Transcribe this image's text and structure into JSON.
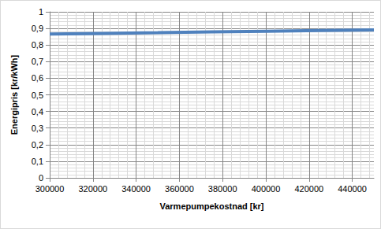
{
  "chart_data": {
    "type": "line",
    "x_label": "Varmepumpekostnad [kr]",
    "y_label": "Energipris [kr/kWh]",
    "series": [
      {
        "name": "Energipris",
        "color": "#4f81bd",
        "x": [
          300000,
          325000,
          350000,
          375000,
          400000,
          425000,
          450000
        ],
        "values": [
          0.866,
          0.87,
          0.874,
          0.879,
          0.883,
          0.887,
          0.891
        ]
      }
    ],
    "xlim": [
      300000,
      450000
    ],
    "xticks": [
      300000,
      320000,
      340000,
      360000,
      380000,
      400000,
      420000,
      440000
    ],
    "ylim": [
      0,
      1
    ],
    "yticks": [
      0,
      {
        "value": 0.1,
        "label": "0,1"
      },
      {
        "value": 0.2,
        "label": "0,2"
      },
      {
        "value": 0.3,
        "label": "0,3"
      },
      {
        "value": 0.4,
        "label": "0,4"
      },
      {
        "value": 0.5,
        "label": "0,5"
      },
      {
        "value": 0.6,
        "label": "0,6"
      },
      {
        "value": 0.7,
        "label": "0,7"
      },
      {
        "value": 0.8,
        "label": "0,8"
      },
      {
        "value": 0.9,
        "label": "0,9"
      },
      1
    ],
    "grid": true
  }
}
